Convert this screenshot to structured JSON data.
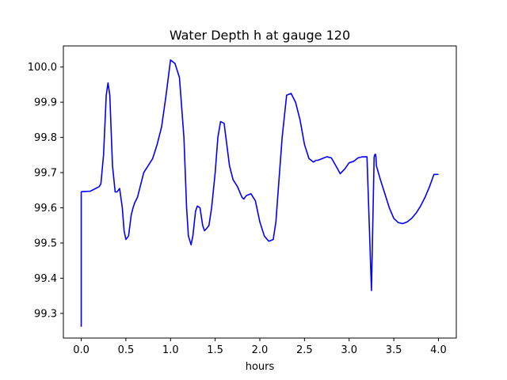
{
  "chart_data": {
    "type": "line",
    "title": "Water Depth h at gauge 120",
    "xlabel": "hours",
    "ylabel": "",
    "xlim": [
      -0.2,
      4.2
    ],
    "ylim": [
      99.23,
      100.06
    ],
    "xticks": [
      0.0,
      0.5,
      1.0,
      1.5,
      2.0,
      2.5,
      3.0,
      3.5,
      4.0
    ],
    "xtick_labels": [
      "0.0",
      "0.5",
      "1.0",
      "1.5",
      "2.0",
      "2.5",
      "3.0",
      "3.5",
      "4.0"
    ],
    "yticks": [
      99.3,
      99.4,
      99.5,
      99.6,
      99.7,
      99.8,
      99.9,
      100.0
    ],
    "ytick_labels": [
      "99.3",
      "99.4",
      "99.5",
      "99.6",
      "99.7",
      "99.8",
      "99.9",
      "100.0"
    ],
    "grid": false,
    "series": [
      {
        "color": "#0000ff",
        "x": [
          0.0,
          0.0,
          0.005,
          0.1,
          0.2,
          0.22,
          0.25,
          0.28,
          0.3,
          0.32,
          0.35,
          0.38,
          0.4,
          0.43,
          0.46,
          0.48,
          0.5,
          0.53,
          0.56,
          0.58,
          0.6,
          0.63,
          0.66,
          0.7,
          0.75,
          0.8,
          0.85,
          0.9,
          0.95,
          1.0,
          1.05,
          1.1,
          1.15,
          1.18,
          1.2,
          1.23,
          1.25,
          1.28,
          1.3,
          1.33,
          1.36,
          1.38,
          1.4,
          1.43,
          1.46,
          1.5,
          1.53,
          1.56,
          1.6,
          1.63,
          1.66,
          1.7,
          1.75,
          1.8,
          1.82,
          1.85,
          1.9,
          1.95,
          2.0,
          2.05,
          2.1,
          2.15,
          2.18,
          2.2,
          2.25,
          2.3,
          2.35,
          2.4,
          2.45,
          2.5,
          2.55,
          2.6,
          2.63,
          2.65,
          2.7,
          2.75,
          2.8,
          2.85,
          2.9,
          2.95,
          3.0,
          3.05,
          3.1,
          3.15,
          3.2,
          3.25,
          3.28,
          3.29,
          3.295,
          3.3,
          3.305,
          3.35,
          3.4,
          3.45,
          3.5,
          3.55,
          3.6,
          3.65,
          3.7,
          3.75,
          3.8,
          3.85,
          3.9,
          3.95,
          4.0
        ],
        "y": [
          99.262,
          99.645,
          99.646,
          99.647,
          99.66,
          99.668,
          99.75,
          99.92,
          99.955,
          99.92,
          99.72,
          99.645,
          99.645,
          99.655,
          99.6,
          99.535,
          99.51,
          99.52,
          99.58,
          99.6,
          99.615,
          99.63,
          99.66,
          99.7,
          99.72,
          99.74,
          99.78,
          99.83,
          99.92,
          100.02,
          100.01,
          99.97,
          99.8,
          99.6,
          99.52,
          99.495,
          99.52,
          99.59,
          99.605,
          99.6,
          99.55,
          99.535,
          99.54,
          99.55,
          99.6,
          99.7,
          99.8,
          99.845,
          99.84,
          99.78,
          99.72,
          99.68,
          99.66,
          99.63,
          99.625,
          99.635,
          99.64,
          99.62,
          99.56,
          99.52,
          99.505,
          99.51,
          99.56,
          99.63,
          99.8,
          99.92,
          99.925,
          99.9,
          99.85,
          99.78,
          99.74,
          99.73,
          99.735,
          99.735,
          99.74,
          99.745,
          99.742,
          99.72,
          99.697,
          99.71,
          99.728,
          99.732,
          99.742,
          99.745,
          99.745,
          99.365,
          99.745,
          99.752,
          99.752,
          99.745,
          99.72,
          99.68,
          99.64,
          99.6,
          99.57,
          99.558,
          99.555,
          99.56,
          99.57,
          99.585,
          99.605,
          99.63,
          99.66,
          99.695,
          99.695
        ]
      }
    ]
  }
}
